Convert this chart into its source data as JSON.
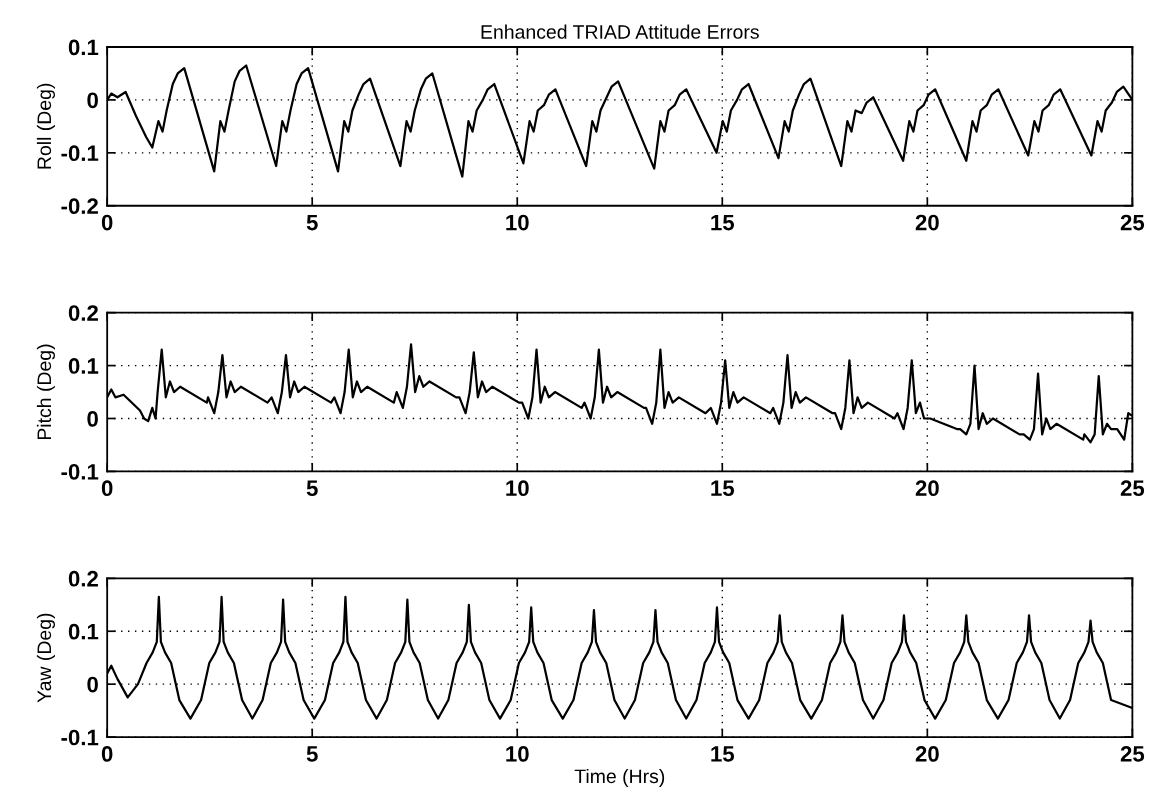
{
  "chart_data": [
    {
      "type": "line",
      "title": "Enhanced TRIAD Attitude Errors",
      "ylabel": "Roll (Deg)",
      "xlim": [
        0,
        25
      ],
      "ylim": [
        -0.2,
        0.1
      ],
      "xticks": [
        0,
        5,
        10,
        15,
        20,
        25
      ],
      "yticks": [
        -0.2,
        -0.1,
        0,
        0.1
      ],
      "grid": true,
      "series": [
        {
          "color": "#000000",
          "x": [
            0,
            0.1,
            0.25,
            0.45,
            0.7,
            0.95,
            1.1,
            1.25,
            1.35,
            1.45,
            1.6,
            1.72,
            1.88,
            2.61,
            2.76,
            2.86,
            2.96,
            3.11,
            3.23,
            3.39,
            4.12,
            4.27,
            4.37,
            4.47,
            4.62,
            4.74,
            4.9,
            5.63,
            5.78,
            5.88,
            5.98,
            6.13,
            6.25,
            6.41,
            7.15,
            7.3,
            7.4,
            7.5,
            7.65,
            7.77,
            7.93,
            8.66,
            8.81,
            8.91,
            9.01,
            9.16,
            9.28,
            9.44,
            10.15,
            10.3,
            10.4,
            10.5,
            10.65,
            10.77,
            10.93,
            11.68,
            11.83,
            11.93,
            12.03,
            12.18,
            12.3,
            12.46,
            13.34,
            13.49,
            13.59,
            13.69,
            13.84,
            13.96,
            14.12,
            14.86,
            15.01,
            15.11,
            15.21,
            15.36,
            15.48,
            15.64,
            16.37,
            16.52,
            16.62,
            16.72,
            16.87,
            16.99,
            17.15,
            17.9,
            18.05,
            18.15,
            18.25,
            18.4,
            18.52,
            18.68,
            19.41,
            19.56,
            19.66,
            19.76,
            19.91,
            20.03,
            20.19,
            20.95,
            21.1,
            21.2,
            21.3,
            21.45,
            21.57,
            21.73,
            22.46,
            22.61,
            22.71,
            22.81,
            22.96,
            23.08,
            23.24,
            24.0,
            24.15,
            24.25,
            24.35,
            24.5,
            24.62,
            24.78,
            25
          ],
          "values": [
            0,
            0.012,
            0.005,
            0.015,
            -0.03,
            -0.07,
            -0.09,
            -0.04,
            -0.06,
            -0.02,
            0.03,
            0.05,
            0.06,
            -0.135,
            -0.04,
            -0.06,
            -0.02,
            0.035,
            0.055,
            0.065,
            -0.125,
            -0.04,
            -0.06,
            -0.02,
            0.03,
            0.05,
            0.06,
            -0.135,
            -0.04,
            -0.06,
            -0.02,
            0.01,
            0.03,
            0.04,
            -0.125,
            -0.04,
            -0.06,
            -0.02,
            0.02,
            0.04,
            0.05,
            -0.145,
            -0.04,
            -0.06,
            -0.02,
            0.0,
            0.02,
            0.03,
            -0.12,
            -0.04,
            -0.06,
            -0.02,
            -0.01,
            0.01,
            0.02,
            -0.125,
            -0.04,
            -0.06,
            -0.02,
            0.005,
            0.025,
            0.035,
            -0.13,
            -0.04,
            -0.06,
            -0.02,
            -0.01,
            0.01,
            0.02,
            -0.1,
            -0.04,
            -0.06,
            -0.02,
            0.0,
            0.02,
            0.03,
            -0.11,
            -0.04,
            -0.06,
            -0.02,
            0.01,
            0.03,
            0.04,
            -0.125,
            -0.04,
            -0.06,
            -0.02,
            -0.025,
            -0.005,
            0.005,
            -0.115,
            -0.04,
            -0.06,
            -0.02,
            -0.01,
            0.01,
            0.02,
            -0.115,
            -0.04,
            -0.06,
            -0.02,
            -0.01,
            0.01,
            0.02,
            -0.105,
            -0.04,
            -0.06,
            -0.02,
            -0.01,
            0.01,
            0.02,
            -0.105,
            -0.04,
            -0.06,
            -0.02,
            -0.005,
            0.015,
            0.025,
            0.0
          ]
        }
      ]
    },
    {
      "type": "line",
      "ylabel": "Pitch (Deg)",
      "xlim": [
        0,
        25
      ],
      "ylim": [
        -0.1,
        0.2
      ],
      "xticks": [
        0,
        5,
        10,
        15,
        20,
        25
      ],
      "yticks": [
        -0.1,
        0,
        0.1,
        0.2
      ],
      "grid": true,
      "series": [
        {
          "color": "#000000",
          "x": [
            0,
            0.1,
            0.2,
            0.4,
            0.8,
            0.9,
            1.0,
            1.1,
            1.18,
            1.23,
            1.33,
            1.43,
            1.53,
            1.63,
            1.78,
            2.43,
            2.46,
            2.61,
            2.71,
            2.81,
            2.91,
            3.01,
            3.11,
            3.26,
            3.91,
            4.01,
            4.16,
            4.26,
            4.36,
            4.46,
            4.56,
            4.66,
            4.81,
            5.46,
            5.54,
            5.69,
            5.79,
            5.89,
            5.99,
            6.09,
            6.19,
            6.34,
            6.99,
            7.06,
            7.21,
            7.31,
            7.41,
            7.51,
            7.61,
            7.71,
            7.86,
            8.51,
            8.59,
            8.74,
            8.84,
            8.94,
            9.04,
            9.14,
            9.24,
            9.39,
            10.04,
            10.12,
            10.27,
            10.37,
            10.47,
            10.57,
            10.67,
            10.77,
            10.92,
            11.57,
            11.64,
            11.79,
            11.89,
            11.99,
            12.09,
            12.19,
            12.29,
            12.44,
            13.09,
            13.14,
            13.29,
            13.39,
            13.49,
            13.59,
            13.69,
            13.79,
            13.94,
            14.59,
            14.72,
            14.87,
            14.97,
            15.07,
            15.17,
            15.27,
            15.37,
            15.52,
            16.17,
            16.24,
            16.39,
            16.49,
            16.59,
            16.69,
            16.79,
            16.89,
            17.04,
            17.69,
            17.75,
            17.9,
            18.0,
            18.1,
            18.2,
            18.3,
            18.4,
            18.55,
            19.2,
            19.27,
            19.42,
            19.52,
            19.62,
            19.72,
            19.82,
            19.92,
            20.07,
            20.72,
            20.8,
            20.95,
            21.05,
            21.15,
            21.25,
            21.35,
            21.45,
            21.6,
            22.25,
            22.35,
            22.5,
            22.6,
            22.7,
            22.8,
            22.9,
            23.0,
            23.15,
            23.8,
            23.83,
            23.98,
            24.08,
            24.18,
            24.28,
            24.38,
            24.48,
            24.63,
            24.8,
            24.9,
            25
          ],
          "values": [
            0.04,
            0.055,
            0.04,
            0.045,
            0.015,
            0.0,
            -0.005,
            0.02,
            0.0,
            0.05,
            0.13,
            0.04,
            0.07,
            0.05,
            0.06,
            0.03,
            0.04,
            0.01,
            0.05,
            0.12,
            0.04,
            0.07,
            0.05,
            0.06,
            0.03,
            0.04,
            0.01,
            0.05,
            0.12,
            0.04,
            0.07,
            0.05,
            0.06,
            0.03,
            0.04,
            0.01,
            0.05,
            0.13,
            0.04,
            0.07,
            0.05,
            0.06,
            0.03,
            0.05,
            0.02,
            0.06,
            0.14,
            0.05,
            0.08,
            0.06,
            0.07,
            0.04,
            0.04,
            0.01,
            0.05,
            0.125,
            0.04,
            0.07,
            0.05,
            0.06,
            0.03,
            0.03,
            0.0,
            0.04,
            0.13,
            0.03,
            0.06,
            0.04,
            0.05,
            0.02,
            0.03,
            0.0,
            0.04,
            0.13,
            0.03,
            0.06,
            0.04,
            0.05,
            0.02,
            0.02,
            -0.01,
            0.03,
            0.13,
            0.02,
            0.05,
            0.03,
            0.04,
            0.01,
            0.02,
            -0.01,
            0.03,
            0.11,
            0.02,
            0.05,
            0.03,
            0.04,
            0.01,
            0.02,
            -0.01,
            0.03,
            0.12,
            0.02,
            0.05,
            0.03,
            0.04,
            0.01,
            0.01,
            -0.02,
            0.02,
            0.11,
            0.01,
            0.04,
            0.02,
            0.03,
            0.0,
            0.01,
            -0.02,
            0.02,
            0.11,
            0.01,
            0.03,
            0.0,
            0.0,
            -0.02,
            -0.02,
            -0.03,
            -0.01,
            0.1,
            -0.02,
            0.01,
            -0.01,
            0.0,
            -0.03,
            -0.03,
            -0.04,
            -0.02,
            0.085,
            -0.03,
            0.0,
            -0.02,
            -0.01,
            -0.04,
            -0.03,
            -0.045,
            -0.03,
            0.08,
            -0.03,
            -0.01,
            -0.02,
            -0.02,
            -0.04,
            0.01,
            0.005
          ]
        }
      ]
    },
    {
      "type": "line",
      "ylabel": "Yaw (Deg)",
      "xlabel": "Time (Hrs)",
      "xlim": [
        0,
        25
      ],
      "ylim": [
        -0.1,
        0.2
      ],
      "xticks": [
        0,
        5,
        10,
        15,
        20,
        25
      ],
      "yticks": [
        -0.1,
        0,
        0.1,
        0.2
      ],
      "grid": true,
      "series": [
        {
          "color": "#000000",
          "x": [
            0,
            0.1,
            0.25,
            0.5,
            0.75,
            0.96,
            1.11,
            1.21,
            1.26,
            1.31,
            1.41,
            1.56,
            1.76,
            2.03,
            2.29,
            2.49,
            2.64,
            2.74,
            2.79,
            2.84,
            2.94,
            3.09,
            3.29,
            3.54,
            3.79,
            3.99,
            4.14,
            4.24,
            4.29,
            4.34,
            4.44,
            4.59,
            4.79,
            5.05,
            5.31,
            5.51,
            5.66,
            5.76,
            5.81,
            5.86,
            5.96,
            6.11,
            6.31,
            6.57,
            6.82,
            7.02,
            7.17,
            7.27,
            7.32,
            7.37,
            7.47,
            7.62,
            7.82,
            8.07,
            8.32,
            8.52,
            8.67,
            8.77,
            8.82,
            8.87,
            8.97,
            9.12,
            9.32,
            9.58,
            9.84,
            10.04,
            10.19,
            10.29,
            10.34,
            10.39,
            10.49,
            10.64,
            10.84,
            11.11,
            11.37,
            11.57,
            11.72,
            11.82,
            11.87,
            11.92,
            12.02,
            12.17,
            12.37,
            12.62,
            12.87,
            13.07,
            13.22,
            13.32,
            13.37,
            13.42,
            13.52,
            13.67,
            13.87,
            14.12,
            14.37,
            14.57,
            14.72,
            14.82,
            14.87,
            14.92,
            15.02,
            15.17,
            15.37,
            15.64,
            15.9,
            16.1,
            16.25,
            16.35,
            16.4,
            16.45,
            16.55,
            16.7,
            16.9,
            17.17,
            17.43,
            17.63,
            17.78,
            17.88,
            17.93,
            17.98,
            18.08,
            18.23,
            18.43,
            18.68,
            18.93,
            19.13,
            19.28,
            19.38,
            19.43,
            19.48,
            19.58,
            19.73,
            19.93,
            20.19,
            20.45,
            20.65,
            20.8,
            20.9,
            20.95,
            21.0,
            21.1,
            21.25,
            21.45,
            21.72,
            21.98,
            22.18,
            22.33,
            22.43,
            22.48,
            22.53,
            22.63,
            22.78,
            22.98,
            23.23,
            23.48,
            23.68,
            23.83,
            23.93,
            23.98,
            24.03,
            24.13,
            24.28,
            24.48,
            25
          ],
          "values": [
            0.02,
            0.035,
            0.01,
            -0.025,
            0.0,
            0.04,
            0.06,
            0.08,
            0.165,
            0.08,
            0.06,
            0.04,
            -0.03,
            -0.065,
            -0.03,
            0.04,
            0.06,
            0.08,
            0.165,
            0.08,
            0.06,
            0.04,
            -0.03,
            -0.065,
            -0.03,
            0.04,
            0.06,
            0.08,
            0.16,
            0.08,
            0.06,
            0.04,
            -0.03,
            -0.065,
            -0.03,
            0.04,
            0.06,
            0.08,
            0.165,
            0.08,
            0.06,
            0.04,
            -0.03,
            -0.065,
            -0.03,
            0.04,
            0.06,
            0.08,
            0.16,
            0.08,
            0.06,
            0.04,
            -0.03,
            -0.065,
            -0.03,
            0.04,
            0.06,
            0.08,
            0.15,
            0.08,
            0.06,
            0.04,
            -0.03,
            -0.065,
            -0.03,
            0.04,
            0.06,
            0.08,
            0.145,
            0.08,
            0.06,
            0.04,
            -0.03,
            -0.065,
            -0.03,
            0.04,
            0.06,
            0.08,
            0.14,
            0.08,
            0.06,
            0.04,
            -0.03,
            -0.065,
            -0.03,
            0.04,
            0.06,
            0.08,
            0.14,
            0.08,
            0.06,
            0.04,
            -0.03,
            -0.065,
            -0.03,
            0.04,
            0.06,
            0.08,
            0.145,
            0.08,
            0.06,
            0.04,
            -0.03,
            -0.065,
            -0.03,
            0.04,
            0.06,
            0.08,
            0.13,
            0.08,
            0.06,
            0.04,
            -0.03,
            -0.065,
            -0.03,
            0.04,
            0.06,
            0.08,
            0.13,
            0.08,
            0.06,
            0.04,
            -0.03,
            -0.065,
            -0.03,
            0.04,
            0.06,
            0.08,
            0.13,
            0.08,
            0.06,
            0.04,
            -0.03,
            -0.065,
            -0.03,
            0.04,
            0.06,
            0.08,
            0.13,
            0.08,
            0.06,
            0.04,
            -0.03,
            -0.065,
            -0.03,
            0.04,
            0.06,
            0.08,
            0.13,
            0.08,
            0.06,
            0.04,
            -0.03,
            -0.065,
            -0.03,
            0.04,
            0.06,
            0.08,
            0.12,
            0.08,
            0.06,
            0.04,
            -0.03,
            -0.045
          ]
        }
      ]
    }
  ]
}
